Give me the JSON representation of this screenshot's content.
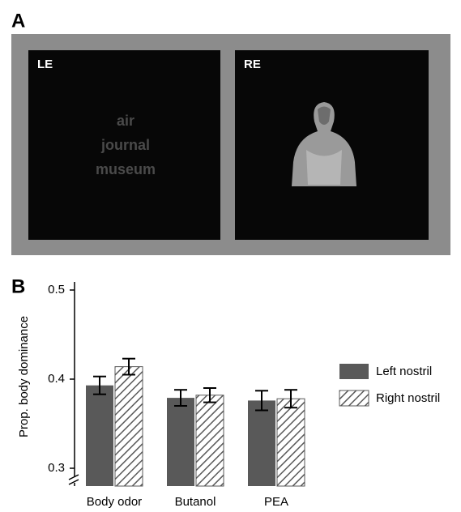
{
  "panel_a": {
    "label": "A",
    "left_label": "LE",
    "right_label": "RE",
    "words": [
      "air",
      "journal",
      "museum"
    ]
  },
  "chart_data": {
    "type": "bar",
    "panel_label": "B",
    "y_label": "Prop. body dominance",
    "categories": [
      "Body odor",
      "Butanol",
      "PEA"
    ],
    "series": [
      {
        "name": "Left nostril",
        "color": "#595959",
        "hatch": false,
        "values": [
          0.393,
          0.379,
          0.376
        ],
        "errors": [
          0.01,
          0.009,
          0.011
        ]
      },
      {
        "name": "Right nostril",
        "color": "#595959",
        "hatch": true,
        "values": [
          0.414,
          0.382,
          0.378
        ],
        "errors": [
          0.009,
          0.008,
          0.01
        ]
      }
    ],
    "ylim": [
      0.28,
      0.5
    ],
    "yticks": [
      0.3,
      0.4,
      0.5
    ],
    "grid": false,
    "legend": "right"
  }
}
